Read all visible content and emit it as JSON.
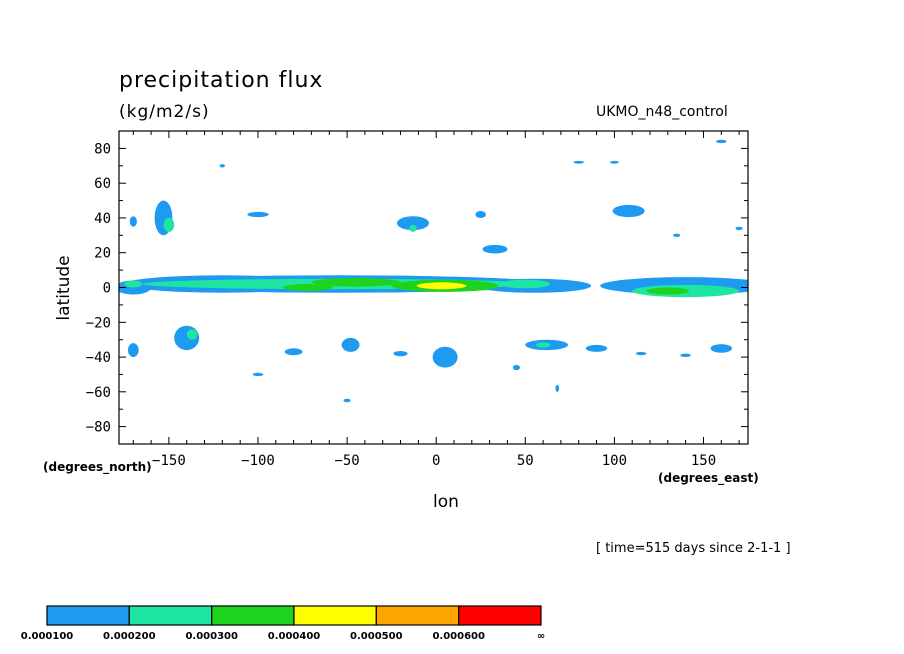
{
  "chart_data": {
    "type": "heatmap",
    "title": "precipitation flux",
    "subtitle": "(kg/m2/s)",
    "dataset_label": "UKMO_n48_control",
    "xlabel": "lon",
    "ylabel": "latitude",
    "x_units": "(degrees_east)",
    "y_units": "(degrees_north)",
    "time_note": "[ time=515 days since 2-1-1 ]",
    "xlim": [
      -178,
      175
    ],
    "ylim": [
      -90,
      90
    ],
    "x_ticks": [
      -150,
      -100,
      -50,
      0,
      50,
      100,
      150
    ],
    "x_tick_labels": [
      "−150",
      "−100",
      "−50",
      "0",
      "50",
      "100",
      "150"
    ],
    "y_ticks": [
      80,
      60,
      40,
      20,
      0,
      -20,
      -40,
      -60,
      -80
    ],
    "y_tick_labels": [
      "80",
      "60",
      "40",
      "20",
      "0",
      "−20",
      "−40",
      "−60",
      "−80"
    ],
    "colorbar": {
      "colors": [
        "#1e9bf0",
        "#1ee6a0",
        "#1ed21e",
        "#ffff00",
        "#ffa500",
        "#ff0000"
      ],
      "labels": [
        "0.000100",
        "0.000200",
        "0.000300",
        "0.000400",
        "0.000500",
        "0.000600",
        "∞"
      ]
    },
    "regions": [
      {
        "lon": -120,
        "lat": 2,
        "dlon": 55,
        "dlat": 5,
        "level": 0
      },
      {
        "lon": -55,
        "lat": 2,
        "dlon": 120,
        "dlat": 5,
        "level": 0
      },
      {
        "lon": -55,
        "lat": 2,
        "dlon": 110,
        "dlat": 3,
        "level": 1
      },
      {
        "lon": -45,
        "lat": 3,
        "dlon": 25,
        "dlat": 2.5,
        "level": 2
      },
      {
        "lon": 5,
        "lat": 1,
        "dlon": 30,
        "dlat": 3.5,
        "level": 2
      },
      {
        "lon": 3,
        "lat": 1,
        "dlon": 14,
        "dlat": 2,
        "level": 3
      },
      {
        "lon": -72,
        "lat": 0,
        "dlon": 14,
        "dlat": 2,
        "level": 2
      },
      {
        "lon": 55,
        "lat": 1,
        "dlon": 32,
        "dlat": 4,
        "level": 0
      },
      {
        "lon": 50,
        "lat": 2,
        "dlon": 14,
        "dlat": 2.5,
        "level": 1
      },
      {
        "lon": 140,
        "lat": 1,
        "dlon": 48,
        "dlat": 5,
        "level": 0
      },
      {
        "lon": 140,
        "lat": -2,
        "dlon": 30,
        "dlat": 3.5,
        "level": 1
      },
      {
        "lon": 130,
        "lat": -2,
        "dlon": 12,
        "dlat": 2,
        "level": 2
      },
      {
        "lon": -170,
        "lat": 0,
        "dlon": 10,
        "dlat": 4,
        "level": 0
      },
      {
        "lon": -170,
        "lat": 2,
        "dlon": 5,
        "dlat": 2,
        "level": 1
      },
      {
        "lon": -153,
        "lat": 40,
        "dlon": 5,
        "dlat": 10,
        "level": 0
      },
      {
        "lon": -150,
        "lat": 36,
        "dlon": 3,
        "dlat": 4,
        "level": 1
      },
      {
        "lon": -140,
        "lat": -29,
        "dlon": 7,
        "dlat": 7,
        "level": 0
      },
      {
        "lon": -137,
        "lat": -27,
        "dlon": 3,
        "dlat": 3,
        "level": 1
      },
      {
        "lon": 5,
        "lat": -40,
        "dlon": 7,
        "dlat": 6,
        "level": 0
      },
      {
        "lon": 62,
        "lat": -33,
        "dlon": 12,
        "dlat": 3,
        "level": 0
      },
      {
        "lon": 60,
        "lat": -33,
        "dlon": 4,
        "dlat": 1.5,
        "level": 1
      },
      {
        "lon": 160,
        "lat": -35,
        "dlon": 6,
        "dlat": 2.5,
        "level": 0
      },
      {
        "lon": -48,
        "lat": -33,
        "dlon": 5,
        "dlat": 4,
        "level": 0
      },
      {
        "lon": -13,
        "lat": 37,
        "dlon": 9,
        "dlat": 4,
        "level": 0
      },
      {
        "lon": -13,
        "lat": 34,
        "dlon": 2,
        "dlat": 2,
        "level": 1
      },
      {
        "lon": 33,
        "lat": 22,
        "dlon": 7,
        "dlat": 2.5,
        "level": 0
      },
      {
        "lon": 108,
        "lat": 44,
        "dlon": 9,
        "dlat": 3.5,
        "level": 0
      },
      {
        "lon": -100,
        "lat": 42,
        "dlon": 6,
        "dlat": 1.5,
        "level": 0
      },
      {
        "lon": -80,
        "lat": -37,
        "dlon": 5,
        "dlat": 2,
        "level": 0
      },
      {
        "lon": 90,
        "lat": -35,
        "dlon": 6,
        "dlat": 2,
        "level": 0
      },
      {
        "lon": -20,
        "lat": -38,
        "dlon": 4,
        "dlat": 1.5,
        "level": 0
      },
      {
        "lon": 25,
        "lat": 42,
        "dlon": 3,
        "dlat": 2,
        "level": 0
      },
      {
        "lon": -170,
        "lat": -36,
        "dlon": 3,
        "dlat": 4,
        "level": 0
      },
      {
        "lon": -170,
        "lat": 38,
        "dlon": 2,
        "dlat": 3,
        "level": 0
      },
      {
        "lon": 140,
        "lat": -39,
        "dlon": 3,
        "dlat": 1,
        "level": 0
      },
      {
        "lon": 115,
        "lat": -38,
        "dlon": 3,
        "dlat": 1,
        "level": 0
      },
      {
        "lon": 135,
        "lat": 30,
        "dlon": 2,
        "dlat": 1,
        "level": 0
      },
      {
        "lon": 80,
        "lat": 72,
        "dlon": 3,
        "dlat": 0.8,
        "level": 0
      },
      {
        "lon": 100,
        "lat": 72,
        "dlon": 2.5,
        "dlat": 0.8,
        "level": 0
      },
      {
        "lon": 160,
        "lat": 84,
        "dlon": 3,
        "dlat": 1,
        "level": 0
      },
      {
        "lon": -50,
        "lat": -65,
        "dlon": 2,
        "dlat": 1,
        "level": 0
      },
      {
        "lon": 68,
        "lat": -58,
        "dlon": 1,
        "dlat": 2,
        "level": 0
      },
      {
        "lon": -100,
        "lat": -50,
        "dlon": 3,
        "dlat": 1,
        "level": 0
      },
      {
        "lon": 45,
        "lat": -46,
        "dlon": 2,
        "dlat": 1.5,
        "level": 0
      },
      {
        "lon": 170,
        "lat": 34,
        "dlon": 2,
        "dlat": 1,
        "level": 0
      },
      {
        "lon": -120,
        "lat": 70,
        "dlon": 1.5,
        "dlat": 1,
        "level": 0
      }
    ]
  }
}
